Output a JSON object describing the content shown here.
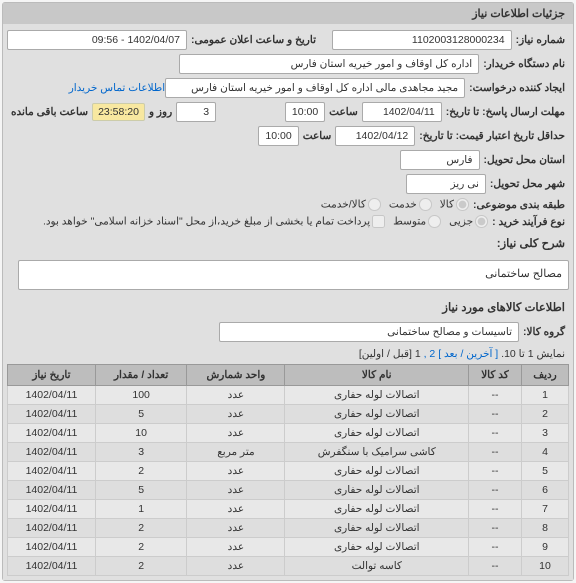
{
  "header": "جزئیات اطلاعات نیاز",
  "info": {
    "req_no_lbl": "شماره نیاز:",
    "req_no": "1102003128000234",
    "pub_date_lbl": "تاریخ و ساعت اعلان عمومی:",
    "pub_date": "1402/04/07 - 09:56",
    "buyer_lbl": "نام دستگاه خریدار:",
    "buyer": "اداره کل اوقاف و امور خیریه استان فارس",
    "creator_lbl": "ایجاد کننده درخواست:",
    "creator": "مجید مجاهدی مالی اداره کل اوقاف و امور خیریه استان فارس",
    "contact_link": "اطلاعات تماس خریدار",
    "reply_deadline_lbl": "مهلت ارسال پاسخ: تا تاریخ:",
    "reply_date": "1402/04/11",
    "reply_time_lbl": "ساعت",
    "reply_time": "10:00",
    "remain_days": "3",
    "remain_days_lbl": "روز و",
    "remain_hms": "23:58:20",
    "remain_tail": "ساعت باقی مانده",
    "validity_lbl": "حداقل تاریخ اعتبار قیمت: تا تاریخ:",
    "validity_date": "1402/04/12",
    "validity_time": "10:00",
    "province_lbl": "استان محل تحویل:",
    "province": "فارس",
    "city_lbl": "شهر محل تحویل:",
    "city": "نی ریز",
    "topic_lbl": "طبقه بندی موضوعی:",
    "topic_opts": {
      "goods": "کالا",
      "service": "خدمت",
      "gs": "کالا/خدمت"
    },
    "purchase_lbl": "نوع فرآیند خرید :",
    "purchase_opts": {
      "low": "جزیی",
      "mid": "متوسط"
    },
    "purchase_note": "پرداخت تمام یا بخشی از مبلغ خرید،از محل \"اسناد خزانه اسلامی\" خواهد بود."
  },
  "desc": {
    "hdr": "شرح کلی نیاز:",
    "text": "مصالح ساختمانی"
  },
  "goods": {
    "hdr": "اطلاعات کالاهای مورد نیاز",
    "group_lbl": "گروه کالا:",
    "group": "تاسیسات و مصالح ساختمانی",
    "pgn_pre": "نمایش 1 تا 10.",
    "pgn_last": "[ آخرین / بعد ]",
    "pgn_cur": "1",
    "pgn_links": "2 ,",
    "pgn_first": "[قبل / اولین]",
    "cols": [
      "ردیف",
      "کد کالا",
      "نام کالا",
      "واحد شمارش",
      "تعداد / مقدار",
      "تاریخ نیاز"
    ],
    "rows": [
      [
        "1",
        "--",
        "اتصالات لوله حفاری",
        "عدد",
        "100",
        "1402/04/11"
      ],
      [
        "2",
        "--",
        "اتصالات لوله حفاری",
        "عدد",
        "5",
        "1402/04/11"
      ],
      [
        "3",
        "--",
        "اتصالات لوله حفاری",
        "عدد",
        "10",
        "1402/04/11"
      ],
      [
        "4",
        "--",
        "کاشی سرامیک با سنگفرش",
        "متر مربع",
        "3",
        "1402/04/11"
      ],
      [
        "5",
        "--",
        "اتصالات لوله حفاری",
        "عدد",
        "2",
        "1402/04/11"
      ],
      [
        "6",
        "--",
        "اتصالات لوله حفاری",
        "عدد",
        "5",
        "1402/04/11"
      ],
      [
        "7",
        "--",
        "اتصالات لوله حفاری",
        "عدد",
        "1",
        "1402/04/11"
      ],
      [
        "8",
        "--",
        "اتصالات لوله حفاری",
        "عدد",
        "2",
        "1402/04/11"
      ],
      [
        "9",
        "--",
        "اتصالات لوله حفاری",
        "عدد",
        "2",
        "1402/04/11"
      ],
      [
        "10",
        "--",
        "کاسه توالت",
        "عدد",
        "2",
        "1402/04/11"
      ]
    ]
  }
}
